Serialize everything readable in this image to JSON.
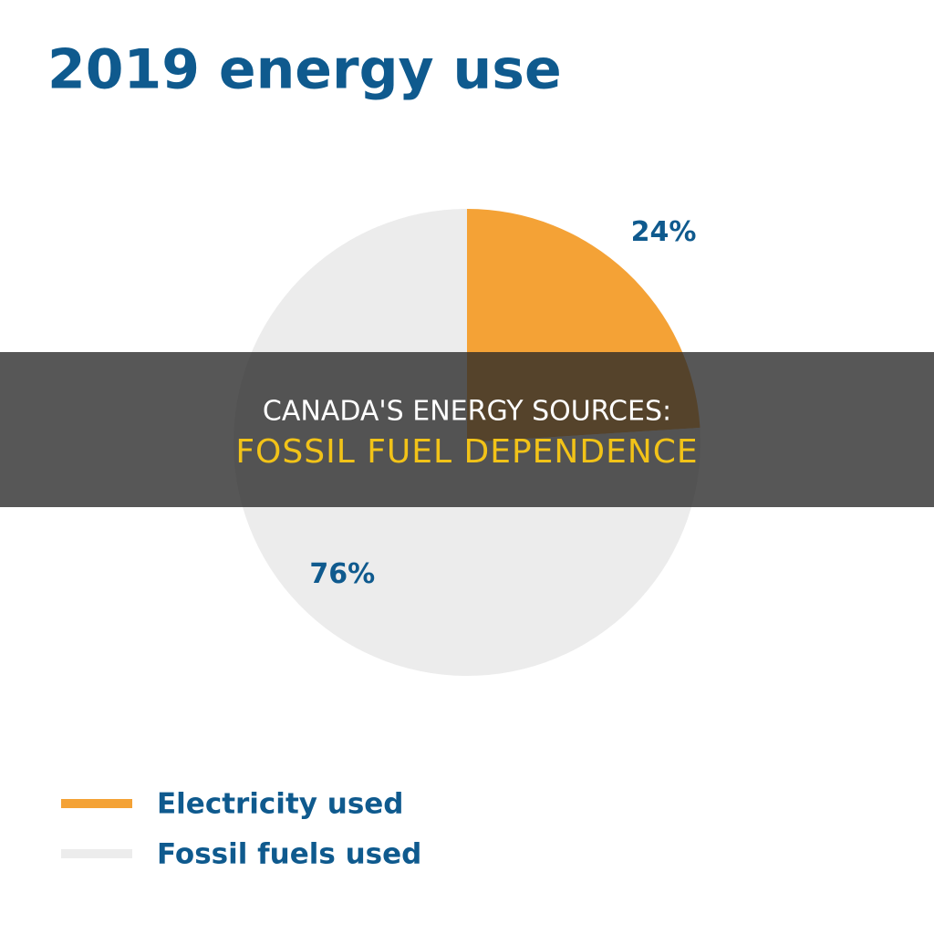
{
  "chart_data": {
    "type": "pie",
    "title": "2019 energy use",
    "categories": [
      "Electricity used",
      "Fossil fuels used"
    ],
    "values": [
      24,
      76
    ],
    "value_labels": [
      "24%",
      "76%"
    ],
    "colors": [
      "#f4a236",
      "#ececec"
    ]
  },
  "banner": {
    "title": "CANADA'S ENERGY SOURCES:",
    "subtitle": "FOSSIL FUEL DEPENDENCE"
  }
}
